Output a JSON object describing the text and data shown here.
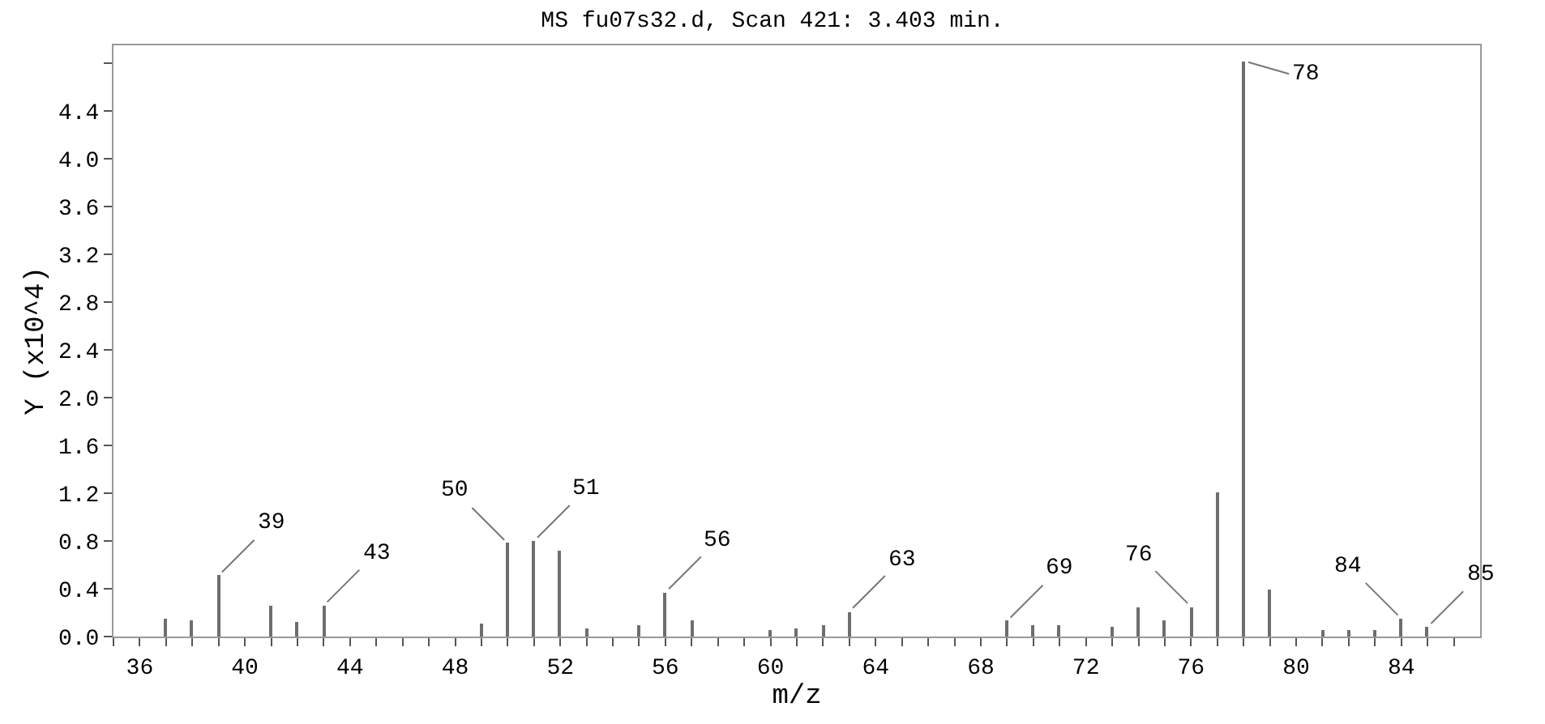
{
  "chart_data": {
    "type": "bar",
    "title": "MS fu07s32.d, Scan 421: 3.403 min.",
    "xlabel": "m/z",
    "ylabel": "Y (x10^4)",
    "x": [
      37,
      38,
      39,
      41,
      42,
      43,
      49,
      50,
      51,
      52,
      53,
      55,
      56,
      57,
      60,
      61,
      62,
      63,
      69,
      70,
      71,
      73,
      74,
      75,
      76,
      77,
      78,
      79,
      81,
      82,
      83,
      84,
      85
    ],
    "values": [
      0.15,
      0.14,
      0.51,
      0.26,
      0.12,
      0.26,
      0.11,
      0.78,
      0.8,
      0.72,
      0.07,
      0.09,
      0.37,
      0.13,
      0.05,
      0.07,
      0.1,
      0.21,
      0.13,
      0.1,
      0.1,
      0.08,
      0.24,
      0.13,
      0.25,
      1.21,
      4.82,
      0.4,
      0.05,
      0.05,
      0.05,
      0.15,
      0.08
    ],
    "color": "#6e6e6e",
    "xlim": [
      35,
      87
    ],
    "ylim": [
      0,
      4.95
    ],
    "xticks": [
      {
        "value": 35,
        "label": null
      },
      36,
      {
        "value": 37,
        "label": null
      },
      {
        "value": 38,
        "label": null
      },
      {
        "value": 39,
        "label": null
      },
      40,
      {
        "value": 41,
        "label": null
      },
      {
        "value": 42,
        "label": null
      },
      {
        "value": 43,
        "label": null
      },
      44,
      {
        "value": 45,
        "label": null
      },
      {
        "value": 46,
        "label": null
      },
      {
        "value": 47,
        "label": null
      },
      48,
      {
        "value": 49,
        "label": null
      },
      {
        "value": 50,
        "label": null
      },
      {
        "value": 51,
        "label": null
      },
      52,
      {
        "value": 53,
        "label": null
      },
      {
        "value": 54,
        "label": null
      },
      {
        "value": 55,
        "label": null
      },
      56,
      {
        "value": 57,
        "label": null
      },
      {
        "value": 58,
        "label": null
      },
      {
        "value": 59,
        "label": null
      },
      60,
      {
        "value": 61,
        "label": null
      },
      {
        "value": 62,
        "label": null
      },
      {
        "value": 63,
        "label": null
      },
      64,
      {
        "value": 65,
        "label": null
      },
      {
        "value": 66,
        "label": null
      },
      {
        "value": 67,
        "label": null
      },
      68,
      {
        "value": 69,
        "label": null
      },
      {
        "value": 70,
        "label": null
      },
      {
        "value": 71,
        "label": null
      },
      72,
      {
        "value": 73,
        "label": null
      },
      {
        "value": 74,
        "label": null
      },
      {
        "value": 75,
        "label": null
      },
      76,
      {
        "value": 77,
        "label": null
      },
      {
        "value": 78,
        "label": null
      },
      {
        "value": 79,
        "label": null
      },
      80,
      {
        "value": 81,
        "label": null
      },
      {
        "value": 82,
        "label": null
      },
      {
        "value": 83,
        "label": null
      },
      84,
      {
        "value": 85,
        "label": null
      },
      {
        "value": 86,
        "label": null
      }
    ],
    "yticks": [
      {
        "value": 0,
        "label": "0.0"
      },
      {
        "value": 0.4,
        "label": "0.4"
      },
      {
        "value": 0.8,
        "label": "0.8"
      },
      {
        "value": 1.2,
        "label": "1.2"
      },
      {
        "value": 1.6,
        "label": "1.6"
      },
      {
        "value": 2.0,
        "label": "2.0"
      },
      {
        "value": 2.4,
        "label": "2.4"
      },
      {
        "value": 2.8,
        "label": "2.8"
      },
      {
        "value": 3.2,
        "label": "3.2"
      },
      {
        "value": 3.6,
        "label": "3.6"
      },
      {
        "value": 4.0,
        "label": "4.0"
      },
      {
        "value": 4.4,
        "label": "4.4"
      },
      {
        "value": 4.8,
        "label": null
      }
    ],
    "annotations": [
      {
        "text": "39",
        "x": 39,
        "y": 0.51
      },
      {
        "text": "43",
        "x": 43,
        "y": 0.26
      },
      {
        "text": "50",
        "x": 50,
        "y": 0.78
      },
      {
        "text": "51",
        "x": 51,
        "y": 0.8
      },
      {
        "text": "56",
        "x": 56,
        "y": 0.37
      },
      {
        "text": "63",
        "x": 63,
        "y": 0.21
      },
      {
        "text": "69",
        "x": 69,
        "y": 0.13
      },
      {
        "text": "76",
        "x": 76,
        "y": 0.25
      },
      {
        "text": "78",
        "x": 78,
        "y": 4.82
      },
      {
        "text": "84",
        "x": 84,
        "y": 0.15
      },
      {
        "text": "85",
        "x": 85,
        "y": 0.08
      }
    ],
    "legend": false
  }
}
